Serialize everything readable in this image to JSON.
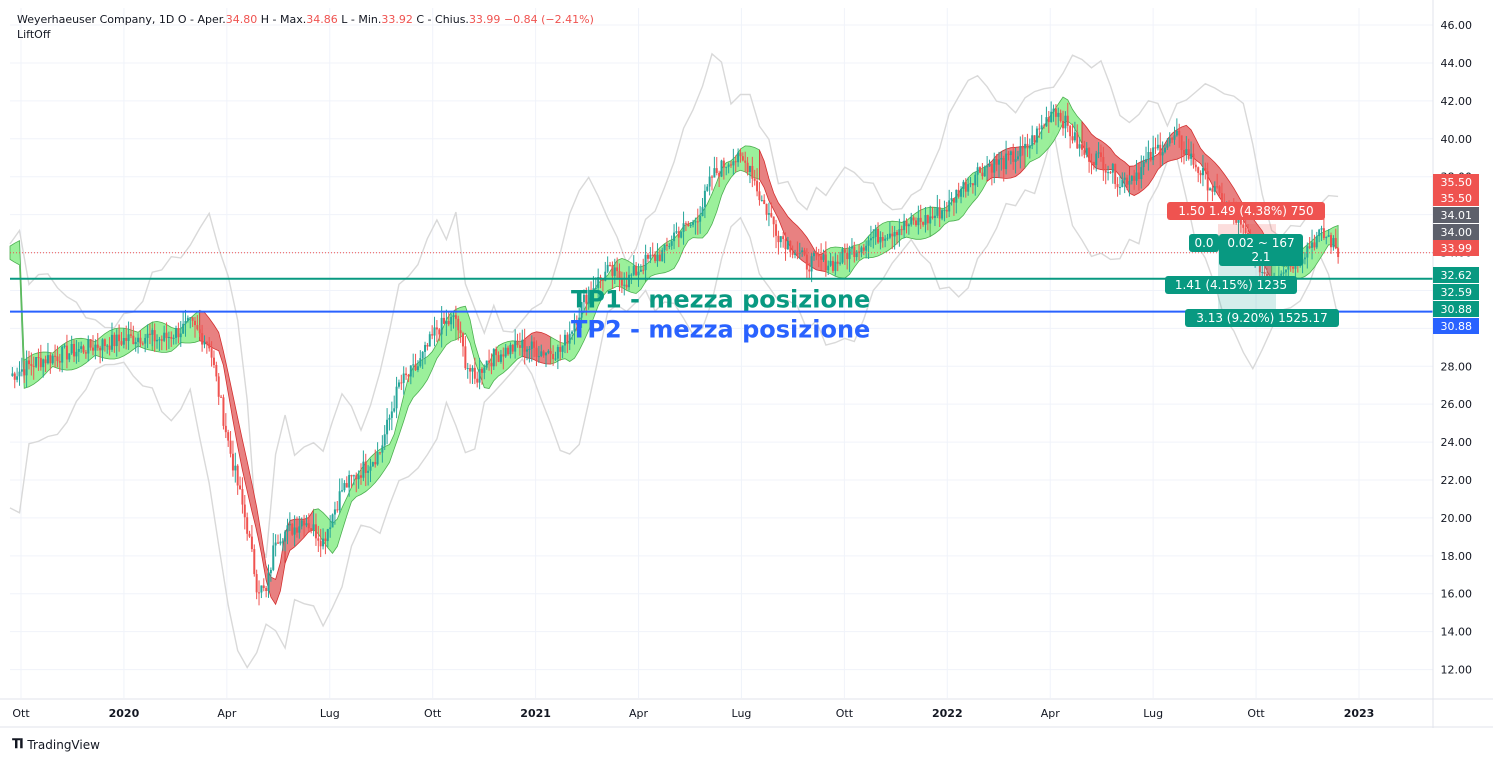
{
  "legend": {
    "symbol": "Weyerhaeuser Company, 1D",
    "open_label": "O - Aper.",
    "open": "34.80",
    "high_label": "H - Max.",
    "high": "34.86",
    "low_label": "L - Min.",
    "low": "33.92",
    "close_label": "C - Chius.",
    "close": "33.99",
    "change": "−0.84 (−2.41%)",
    "indicator": "LiftOff"
  },
  "attribution": "TradingView",
  "colors": {
    "up": "#26a69a",
    "down": "#ef5350",
    "teal": "#089981",
    "blue": "#2962ff",
    "band_up": "#90ee90",
    "band_down": "#e57373",
    "envelope": "#d9d9d9",
    "grey": "#5d606b"
  },
  "chart_data": {
    "type": "candlestick",
    "title": "Weyerhaeuser Company, 1D",
    "ylim": [
      10.5,
      46.9
    ],
    "y_ticks": [
      "46.00",
      "44.00",
      "42.00",
      "40.00",
      "38.00",
      "36.00",
      "34.00",
      "32.00",
      "30.00",
      "28.00",
      "26.00",
      "24.00",
      "22.00",
      "20.00",
      "18.00",
      "16.00",
      "14.00",
      "12.00"
    ],
    "x_ticks": [
      "Ott",
      "2020",
      "Apr",
      "Lug",
      "Ott",
      "2021",
      "Apr",
      "Lug",
      "Ott",
      "2022",
      "Apr",
      "Lug",
      "Ott",
      "2023"
    ],
    "grid": true,
    "close_path": [
      [
        0,
        27.5
      ],
      [
        3,
        28.3
      ],
      [
        6,
        28.7
      ],
      [
        9,
        29.1
      ],
      [
        12,
        29.4
      ],
      [
        14,
        29.6
      ],
      [
        16,
        29.4
      ],
      [
        19,
        30.2
      ],
      [
        21,
        29.2
      ],
      [
        23,
        24.0
      ],
      [
        25,
        19.5
      ],
      [
        26,
        16.5
      ],
      [
        27,
        16.0
      ],
      [
        28,
        19.0
      ],
      [
        30,
        19.5
      ],
      [
        31,
        20.0
      ],
      [
        33,
        18.8
      ],
      [
        34,
        20.2
      ],
      [
        35,
        21.5
      ],
      [
        37,
        22.5
      ],
      [
        39,
        23.5
      ],
      [
        41,
        27.0
      ],
      [
        43,
        28.0
      ],
      [
        45,
        30.0
      ],
      [
        47,
        30.5
      ],
      [
        48,
        28.3
      ],
      [
        49,
        27.2
      ],
      [
        50,
        28.2
      ],
      [
        52,
        28.8
      ],
      [
        54,
        29.1
      ],
      [
        56,
        28.8
      ],
      [
        58,
        28.8
      ],
      [
        59,
        29.8
      ],
      [
        61,
        32.0
      ],
      [
        63,
        33.0
      ],
      [
        65,
        32.5
      ],
      [
        67,
        33.5
      ],
      [
        69,
        34.0
      ],
      [
        70,
        35.0
      ],
      [
        72,
        35.5
      ],
      [
        73,
        36.5
      ],
      [
        74,
        38.0
      ],
      [
        76,
        39.0
      ],
      [
        78,
        38.6
      ],
      [
        79,
        37.0
      ],
      [
        80,
        36.0
      ],
      [
        81,
        35.0
      ],
      [
        83,
        34.0
      ],
      [
        84,
        33.4
      ],
      [
        85,
        33.6
      ],
      [
        87,
        33.4
      ],
      [
        88,
        33.9
      ],
      [
        89,
        34.2
      ],
      [
        91,
        34.8
      ],
      [
        93,
        35.2
      ],
      [
        95,
        35.5
      ],
      [
        97,
        35.8
      ],
      [
        99,
        36.5
      ],
      [
        100,
        37.3
      ],
      [
        101,
        37.7
      ],
      [
        102,
        38.3
      ],
      [
        103,
        38.6
      ],
      [
        105,
        38.8
      ],
      [
        107,
        39.4
      ],
      [
        109,
        40.8
      ],
      [
        110,
        41.7
      ],
      [
        111,
        41.0
      ],
      [
        113,
        39.3
      ],
      [
        115,
        38.9
      ],
      [
        116,
        38.4
      ],
      [
        117,
        37.7
      ],
      [
        119,
        38.3
      ],
      [
        121,
        39.5
      ],
      [
        123,
        40.0
      ],
      [
        125,
        38.6
      ],
      [
        127,
        37.2
      ],
      [
        129,
        36.0
      ],
      [
        130,
        35.0
      ],
      [
        131,
        34.2
      ],
      [
        132,
        33.0
      ],
      [
        133,
        32.7
      ],
      [
        134,
        33.2
      ],
      [
        135,
        33.4
      ],
      [
        136,
        33.8
      ],
      [
        137,
        34.4
      ],
      [
        138,
        34.9
      ],
      [
        139,
        34.8
      ],
      [
        140,
        33.99
      ]
    ],
    "band_segments": [
      {
        "t0": 0,
        "t1": 15,
        "trend": "up"
      },
      {
        "t0": 15,
        "t1": 20,
        "trend": "up"
      },
      {
        "t0": 20,
        "t1": 29,
        "trend": "down"
      },
      {
        "t0": 29,
        "t1": 32,
        "trend": "down"
      },
      {
        "t0": 32,
        "t1": 47,
        "trend": "up"
      },
      {
        "t0": 47,
        "t1": 54,
        "trend": "up"
      },
      {
        "t0": 54,
        "t1": 57,
        "trend": "down"
      },
      {
        "t0": 57,
        "t1": 67,
        "trend": "up"
      },
      {
        "t0": 67,
        "t1": 79,
        "trend": "up"
      },
      {
        "t0": 79,
        "t1": 86,
        "trend": "down"
      },
      {
        "t0": 86,
        "t1": 97,
        "trend": "up"
      },
      {
        "t0": 97,
        "t1": 103,
        "trend": "up"
      },
      {
        "t0": 103,
        "t1": 107,
        "trend": "down"
      },
      {
        "t0": 107,
        "t1": 113,
        "trend": "up"
      },
      {
        "t0": 113,
        "t1": 118,
        "trend": "down"
      },
      {
        "t0": 118,
        "t1": 133,
        "trend": "down"
      },
      {
        "t0": 133,
        "t1": 140,
        "trend": "up"
      }
    ],
    "horizontal_lines": [
      {
        "price": 32.62,
        "color": "teal",
        "text": "TP1 - mezza posizione",
        "label": "32.62"
      },
      {
        "price": 30.88,
        "color": "blue",
        "text": "TP2 - mezza posizione",
        "label": "30.88"
      }
    ],
    "last_price_line": 33.99,
    "risk_reward_box": {
      "entry": 34.0,
      "stop": 35.5,
      "target": 30.88,
      "tp1": 32.62,
      "stop_label": "1.50 1.49 (4.38%) 750",
      "center_label_a": "0.02 ~ 167",
      "center_label_b": "2.1",
      "left_label": "0.0",
      "tp1_label": "1.41 (4.15%) 1235",
      "target_label": "3.13 (9.20%) 1525.17"
    },
    "price_labels": [
      {
        "value": "35.50",
        "kind": "down"
      },
      {
        "value": "35.50",
        "kind": "down"
      },
      {
        "value": "34.01",
        "kind": "grey"
      },
      {
        "value": "34.00",
        "kind": "grey"
      },
      {
        "value": "33.99",
        "kind": "down"
      },
      {
        "value": "32.62",
        "kind": "teal"
      },
      {
        "value": "32.59",
        "kind": "teal"
      },
      {
        "value": "30.88",
        "kind": "teal"
      },
      {
        "value": "30.88",
        "kind": "blue"
      }
    ]
  }
}
